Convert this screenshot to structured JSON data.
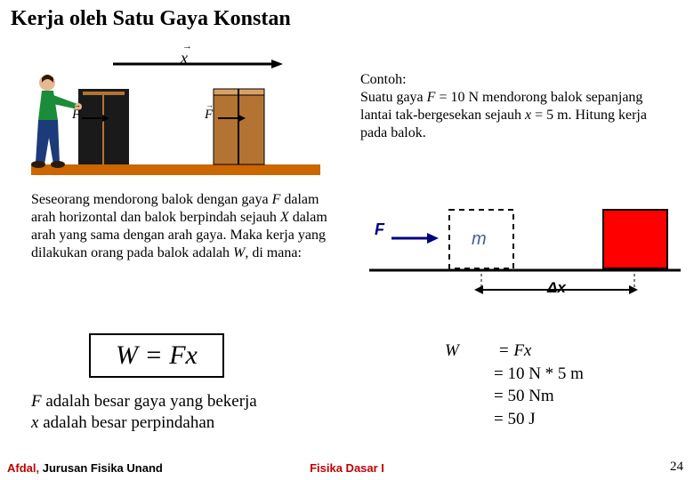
{
  "title": "Kerja oleh Satu Gaya Konstan",
  "example": {
    "heading": "Contoh:",
    "body_html": "Suatu gaya <span class='ital'>F</span> = 10 N mendorong balok sepanjang lantai tak-bergesekan sejauh <span class='ital'>x</span> = 5 m.  Hitung kerja pada balok."
  },
  "description_html": "Seseorang mendorong balok dengan gaya <span class='ital'>F</span> dalam arah horizontal dan  balok berpindah sejauh <span class='ital'>X</span>  dalam arah yang sama dengan arah gaya. Maka kerja yang dilakukan orang pada balok adalah <span class='ital'>W</span>, di mana:",
  "formula": "W = Fx",
  "formula_desc": {
    "line1_html": "<span class='ital'>F</span> adalah besar gaya yang bekerja",
    "line2_html": "<span class='ital'>x</span> adalah besar perpindahan"
  },
  "calc": {
    "w": "W",
    "l1": "= Fx",
    "l2": "= 10 N * 5 m",
    "l3": "= 50 Nm",
    "l4": "= 50 J"
  },
  "diagram": {
    "F_label": "F",
    "m_label": "m",
    "dx_label": "Δx",
    "box_color": "#ff0000",
    "m_color": "#4a5aa0",
    "F_color": "#000080"
  },
  "illustration": {
    "x_label": "x",
    "F_label": "F",
    "floor_color": "#cc6600",
    "box_color": "#b37333",
    "person_shirt": "#1b8c3a",
    "person_pants": "#1d3a7a"
  },
  "footer": {
    "author_red": "Afdal,",
    "author_rest": " Jurusan Fisika Unand",
    "center": "Fisika Dasar I",
    "page": "24"
  }
}
